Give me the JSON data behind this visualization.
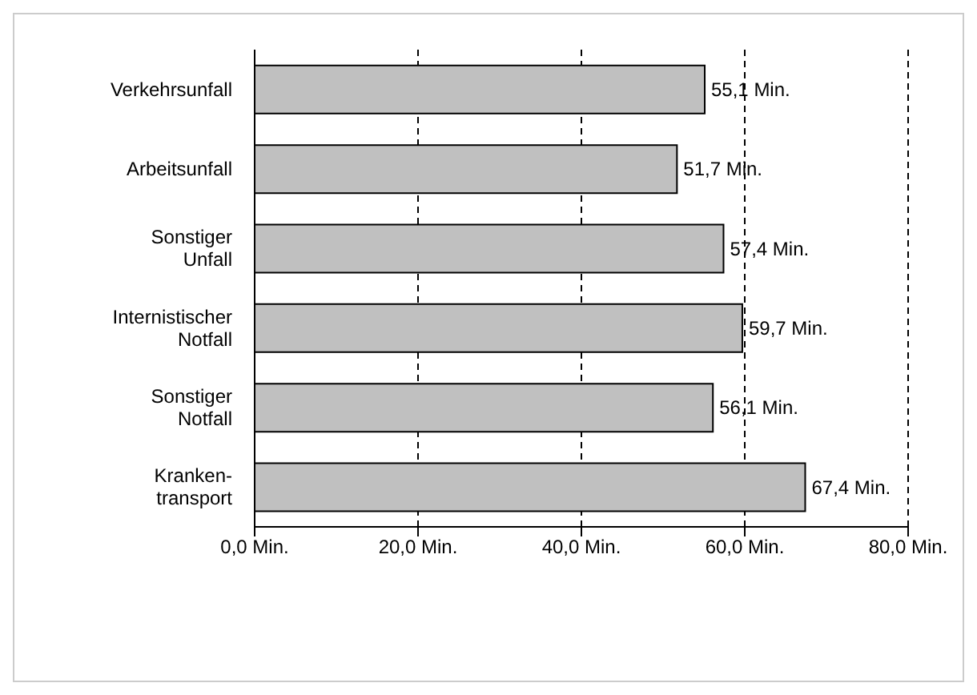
{
  "chart_data": {
    "type": "bar",
    "orientation": "horizontal",
    "categories": [
      "Verkehrsunfall",
      "Arbeitsunfall",
      "Sonstiger\nUnfall",
      "Internistischer\nNotfall",
      "Sonstiger\nNotfall",
      "Kranken-\ntransport"
    ],
    "values": [
      55.1,
      51.7,
      57.4,
      59.7,
      56.1,
      67.4
    ],
    "value_labels": [
      "55,1 Min.",
      "51,7 Min.",
      "57,4 Min.",
      "59,7 Min.",
      "56,1 Min.",
      "67,4 Min."
    ],
    "color": "#c0c0c0",
    "xlim": [
      0,
      80
    ],
    "xticks": [
      {
        "value": 0,
        "label": "0,0 Min."
      },
      {
        "value": 20,
        "label": "20,0 Min."
      },
      {
        "value": 40,
        "label": "40,0 Min."
      },
      {
        "value": 60,
        "label": "60,0 Min."
      },
      {
        "value": 80,
        "label": "80,0 Min."
      }
    ],
    "grid": "x"
  }
}
